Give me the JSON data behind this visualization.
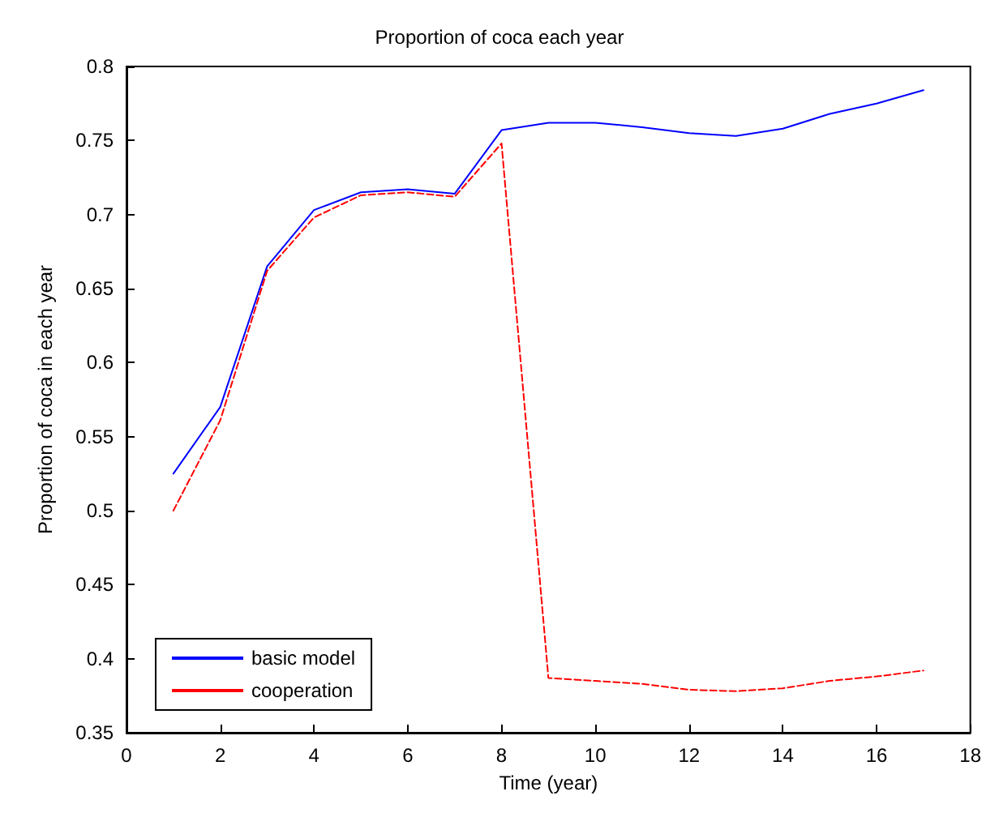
{
  "chart_data": {
    "type": "line",
    "title": "Proportion of coca each year",
    "xlabel": "Time (year)",
    "ylabel": "Proportion of coca in each year",
    "x": [
      1,
      2,
      3,
      4,
      5,
      6,
      7,
      8,
      9,
      10,
      11,
      12,
      13,
      14,
      15,
      16,
      17
    ],
    "series": [
      {
        "name": "basic model",
        "color": "#0000ff",
        "line_style": "solid",
        "values": [
          0.525,
          0.57,
          0.665,
          0.703,
          0.715,
          0.717,
          0.714,
          0.757,
          0.762,
          0.762,
          0.759,
          0.755,
          0.753,
          0.758,
          0.768,
          0.775,
          0.784
        ]
      },
      {
        "name": "cooperation",
        "color": "#ff0000",
        "line_style": "dashed",
        "values": [
          0.5,
          0.561,
          0.662,
          0.698,
          0.713,
          0.715,
          0.712,
          0.748,
          0.387,
          0.385,
          0.383,
          0.379,
          0.378,
          0.38,
          0.385,
          0.388,
          0.392
        ]
      }
    ],
    "xlim": [
      0,
      18
    ],
    "xticks": [
      0,
      2,
      4,
      6,
      8,
      10,
      12,
      14,
      16,
      18
    ],
    "ylim": [
      0.35,
      0.8
    ],
    "yticks": [
      0.35,
      0.4,
      0.45,
      0.5,
      0.55,
      0.6,
      0.65,
      0.7,
      0.75,
      0.8
    ],
    "grid": false,
    "legend": "bottom left",
    "marker": "none"
  }
}
